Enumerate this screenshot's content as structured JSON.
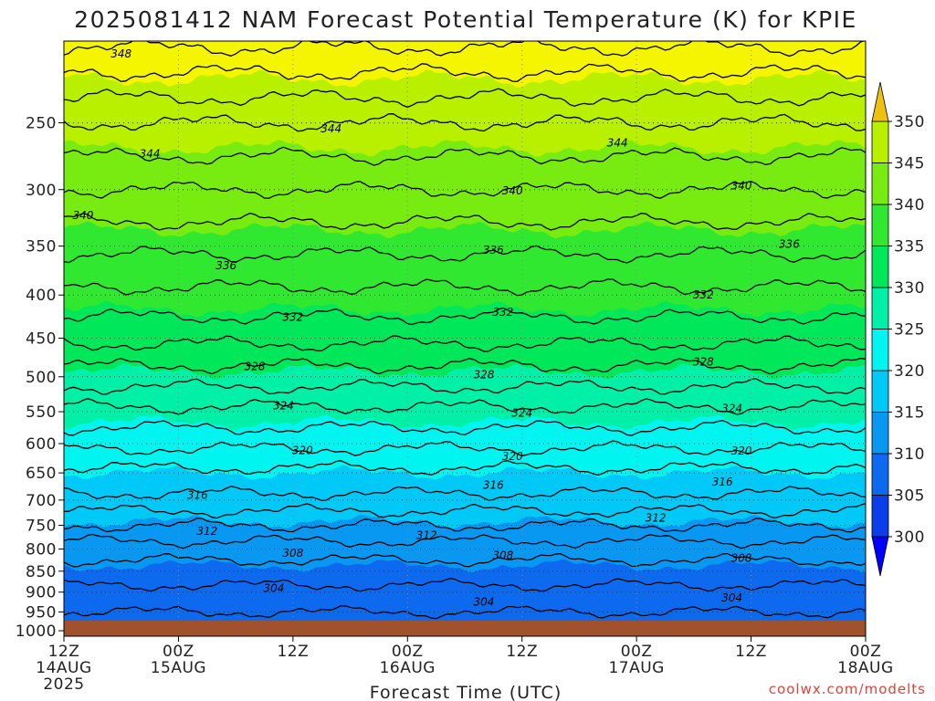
{
  "chart_data": {
    "type": "heatmap",
    "title": "2025081412 NAM Forecast Potential Temperature (K) for KPIE",
    "xlabel": "Forecast Time (UTC)",
    "ylabel": "",
    "credit": "coolwx.com/modelts",
    "y_scale": "log",
    "y_ticks": [
      250,
      300,
      350,
      400,
      450,
      500,
      550,
      600,
      650,
      700,
      750,
      800,
      850,
      900,
      950,
      1000
    ],
    "ylim": [
      1015,
      200
    ],
    "x_hours_range": [
      0,
      84
    ],
    "x_ticks": [
      {
        "hour": 0,
        "label": "12Z",
        "sub": "14AUG",
        "sub2": "2025"
      },
      {
        "hour": 12,
        "label": "00Z",
        "sub": "15AUG",
        "sub2": ""
      },
      {
        "hour": 24,
        "label": "12Z",
        "sub": "",
        "sub2": ""
      },
      {
        "hour": 36,
        "label": "00Z",
        "sub": "16AUG",
        "sub2": ""
      },
      {
        "hour": 48,
        "label": "12Z",
        "sub": "",
        "sub2": ""
      },
      {
        "hour": 60,
        "label": "00Z",
        "sub": "17AUG",
        "sub2": ""
      },
      {
        "hour": 72,
        "label": "12Z",
        "sub": "",
        "sub2": ""
      },
      {
        "hour": 84,
        "label": "00Z",
        "sub": "18AUG",
        "sub2": ""
      }
    ],
    "colorbar": {
      "labels": [
        "300",
        "305",
        "310",
        "315",
        "320",
        "325",
        "330",
        "335",
        "340",
        "345",
        "350"
      ],
      "colors": [
        "#0000ff",
        "#0a3ee8",
        "#0d6aee",
        "#0898f2",
        "#00c8f7",
        "#00f5f0",
        "#00f0a8",
        "#00e85a",
        "#30e830",
        "#78ec10",
        "#b8f000",
        "#f5f500",
        "#f0c010"
      ]
    },
    "contour_interval": 2,
    "surface_color": "#a0522d",
    "profile": {
      "pressure": [
        1010,
        1000,
        950,
        900,
        850,
        800,
        750,
        700,
        650,
        600,
        550,
        500,
        450,
        400,
        350,
        300,
        250,
        200
      ],
      "theta": [
        301.5,
        302.5,
        304.0,
        305.5,
        307.0,
        309.0,
        312.0,
        315.5,
        317.5,
        320.5,
        323.5,
        327.0,
        330.5,
        333.5,
        336.5,
        340.0,
        344.0,
        350.5
      ]
    },
    "contour_labels": [
      {
        "value": 348,
        "hour": 6,
        "p": 207
      },
      {
        "value": 344,
        "hour": 28,
        "p": 254
      },
      {
        "value": 344,
        "hour": 9,
        "p": 272
      },
      {
        "value": 344,
        "hour": 58,
        "p": 264
      },
      {
        "value": 340,
        "hour": 2,
        "p": 322
      },
      {
        "value": 340,
        "hour": 47,
        "p": 301
      },
      {
        "value": 340,
        "hour": 71,
        "p": 297
      },
      {
        "value": 336,
        "hour": 17,
        "p": 369
      },
      {
        "value": 336,
        "hour": 45,
        "p": 354
      },
      {
        "value": 336,
        "hour": 76,
        "p": 348
      },
      {
        "value": 332,
        "hour": 24,
        "p": 425
      },
      {
        "value": 332,
        "hour": 46,
        "p": 419
      },
      {
        "value": 332,
        "hour": 67,
        "p": 400
      },
      {
        "value": 328,
        "hour": 20,
        "p": 486
      },
      {
        "value": 328,
        "hour": 44,
        "p": 497
      },
      {
        "value": 328,
        "hour": 67,
        "p": 480
      },
      {
        "value": 324,
        "hour": 23,
        "p": 541
      },
      {
        "value": 324,
        "hour": 48,
        "p": 552
      },
      {
        "value": 324,
        "hour": 70,
        "p": 545
      },
      {
        "value": 320,
        "hour": 25,
        "p": 611
      },
      {
        "value": 320,
        "hour": 47,
        "p": 621
      },
      {
        "value": 320,
        "hour": 71,
        "p": 612
      },
      {
        "value": 316,
        "hour": 14,
        "p": 691
      },
      {
        "value": 316,
        "hour": 45,
        "p": 672
      },
      {
        "value": 316,
        "hour": 69,
        "p": 666
      },
      {
        "value": 312,
        "hour": 15,
        "p": 762
      },
      {
        "value": 312,
        "hour": 38,
        "p": 771
      },
      {
        "value": 312,
        "hour": 62,
        "p": 735
      },
      {
        "value": 308,
        "hour": 24,
        "p": 809
      },
      {
        "value": 308,
        "hour": 46,
        "p": 814
      },
      {
        "value": 308,
        "hour": 71,
        "p": 820
      },
      {
        "value": 304,
        "hour": 22,
        "p": 891
      },
      {
        "value": 304,
        "hour": 44,
        "p": 924
      },
      {
        "value": 304,
        "hour": 70,
        "p": 914
      }
    ]
  }
}
